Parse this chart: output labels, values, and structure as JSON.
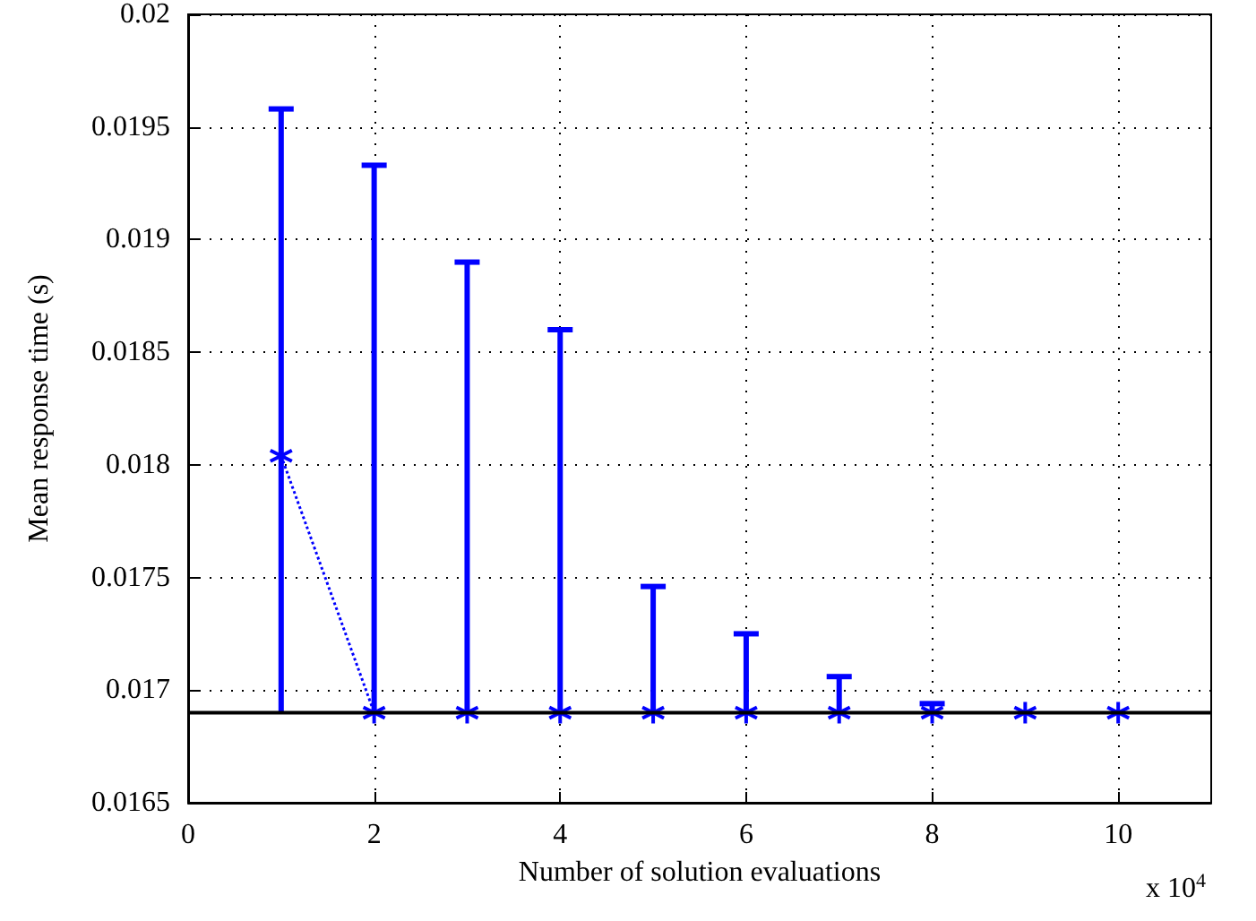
{
  "chart_data": {
    "type": "line",
    "xlabel": "Number of solution evaluations",
    "ylabel": "Mean response time (s)",
    "x": [
      1,
      2,
      3,
      4,
      5,
      6,
      7,
      8,
      9,
      10
    ],
    "series": [
      {
        "color": "#0000ff",
        "values": [
          0.01804,
          0.0169,
          0.0169,
          0.0169,
          0.0169,
          0.0169,
          0.0169,
          0.0169,
          0.0169,
          0.0169
        ],
        "errors": [
          [
            0.0169,
            0.01958
          ],
          [
            0.0169,
            0.01933
          ],
          [
            0.0169,
            0.0189
          ],
          [
            0.0169,
            0.0186
          ],
          [
            0.0169,
            0.01746
          ],
          [
            0.0169,
            0.01725
          ],
          [
            0.0169,
            0.01706
          ],
          [
            0.0169,
            0.01694
          ],
          null,
          null
        ]
      }
    ],
    "xlim": [
      0,
      11
    ],
    "xticks": [
      0,
      2,
      4,
      6,
      8,
      10
    ],
    "ylim": [
      0.0165,
      0.02
    ],
    "yticks": [
      0.0165,
      0.017,
      0.0175,
      0.018,
      0.0185,
      0.019,
      0.0195,
      0.02
    ],
    "ref_lines": [
      {
        "axis": "y",
        "value": 0.0169,
        "color": "#000000"
      }
    ],
    "annotations": [
      "x 10$^{4}$"
    ],
    "grid": true,
    "marker": "cross",
    "line_style": "dotted"
  }
}
